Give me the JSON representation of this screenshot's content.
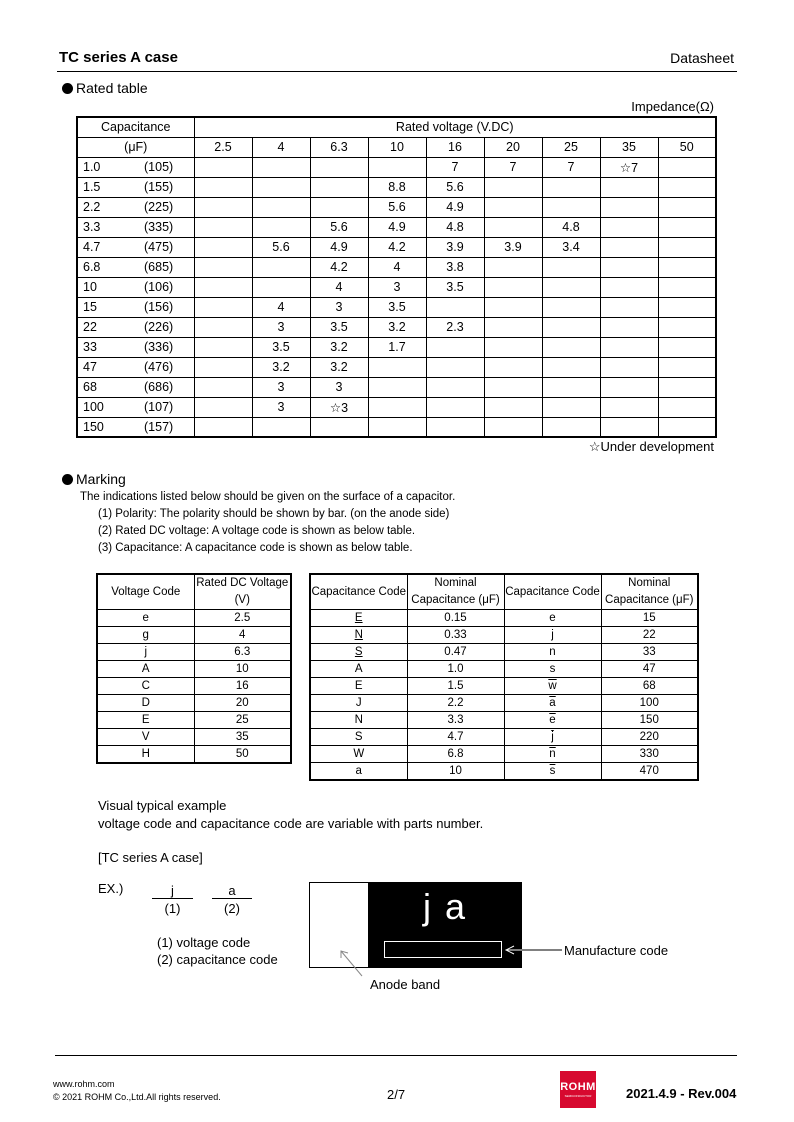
{
  "header": {
    "title": "TC series A case",
    "doc_type": "Datasheet"
  },
  "rated": {
    "section_title": "Rated table",
    "unit_note": "Impedance(Ω)",
    "cap_header": [
      "Capacitance",
      "(μF)"
    ],
    "voltage_header": "Rated voltage (V.DC)",
    "voltages": [
      "2.5",
      "4",
      "6.3",
      "10",
      "16",
      "20",
      "25",
      "35",
      "50"
    ],
    "rows": [
      {
        "cap": "1.0",
        "code": "(105)",
        "values": [
          "",
          "",
          "",
          "",
          "7",
          "7",
          "7",
          "☆7",
          ""
        ]
      },
      {
        "cap": "1.5",
        "code": "(155)",
        "values": [
          "",
          "",
          "",
          "8.8",
          "5.6",
          "",
          "",
          "",
          ""
        ]
      },
      {
        "cap": "2.2",
        "code": "(225)",
        "values": [
          "",
          "",
          "",
          "5.6",
          "4.9",
          "",
          "",
          "",
          ""
        ]
      },
      {
        "cap": "3.3",
        "code": "(335)",
        "values": [
          "",
          "",
          "5.6",
          "4.9",
          "4.8",
          "",
          "4.8",
          "",
          ""
        ]
      },
      {
        "cap": "4.7",
        "code": "(475)",
        "values": [
          "",
          "5.6",
          "4.9",
          "4.2",
          "3.9",
          "3.9",
          "3.4",
          "",
          ""
        ]
      },
      {
        "cap": "6.8",
        "code": "(685)",
        "values": [
          "",
          "",
          "4.2",
          "4",
          "3.8",
          "",
          "",
          "",
          ""
        ]
      },
      {
        "cap": "10",
        "code": "(106)",
        "values": [
          "",
          "",
          "4",
          "3",
          "3.5",
          "",
          "",
          "",
          ""
        ]
      },
      {
        "cap": "15",
        "code": "(156)",
        "values": [
          "",
          "4",
          "3",
          "3.5",
          "",
          "",
          "",
          "",
          ""
        ]
      },
      {
        "cap": "22",
        "code": "(226)",
        "values": [
          "",
          "3",
          "3.5",
          "3.2",
          "2.3",
          "",
          "",
          "",
          ""
        ]
      },
      {
        "cap": "33",
        "code": "(336)",
        "values": [
          "",
          "3.5",
          "3.2",
          "1.7",
          "",
          "",
          "",
          "",
          ""
        ]
      },
      {
        "cap": "47",
        "code": "(476)",
        "values": [
          "",
          "3.2",
          "3.2",
          "",
          "",
          "",
          "",
          "",
          ""
        ]
      },
      {
        "cap": "68",
        "code": "(686)",
        "values": [
          "",
          "3",
          "3",
          "",
          "",
          "",
          "",
          "",
          ""
        ]
      },
      {
        "cap": "100",
        "code": "(107)",
        "values": [
          "",
          "3",
          "☆3",
          "",
          "",
          "",
          "",
          "",
          ""
        ]
      },
      {
        "cap": "150",
        "code": "(157)",
        "values": [
          "",
          "",
          "",
          "",
          "",
          "",
          "",
          "",
          ""
        ]
      }
    ],
    "footnote": "☆Under development"
  },
  "marking": {
    "section_title": "Marking",
    "intro": "The indications listed below should be given on the surface of a capacitor.",
    "items": [
      "(1) Polarity: The polarity should be shown by bar. (on the anode side)",
      "(2) Rated DC voltage: A voltage code is shown as below table.",
      "(3) Capacitance: A capacitance code is shown as below table."
    ],
    "voltage_table": {
      "headers": [
        "Voltage Code",
        "Rated DC Voltage (V)"
      ],
      "rows": [
        [
          "e",
          "2.5"
        ],
        [
          "g",
          "4"
        ],
        [
          "j",
          "6.3"
        ],
        [
          "A",
          "10"
        ],
        [
          "C",
          "16"
        ],
        [
          "D",
          "20"
        ],
        [
          "E",
          "25"
        ],
        [
          "V",
          "35"
        ],
        [
          "H",
          "50"
        ]
      ]
    },
    "cap_table": {
      "headers": [
        "Capacitance Code",
        "Nominal Capacitance (μF)",
        "Capacitance Code",
        "Nominal Capacitance (μF)"
      ],
      "rows": [
        [
          {
            "code": "E",
            "mark": "underline"
          },
          "0.15",
          {
            "code": "e",
            "mark": ""
          },
          "15"
        ],
        [
          {
            "code": "N",
            "mark": "underline"
          },
          "0.33",
          {
            "code": "j",
            "mark": ""
          },
          "22"
        ],
        [
          {
            "code": "S",
            "mark": "underline"
          },
          "0.47",
          {
            "code": "n",
            "mark": ""
          },
          "33"
        ],
        [
          {
            "code": "A",
            "mark": ""
          },
          "1.0",
          {
            "code": "s",
            "mark": ""
          },
          "47"
        ],
        [
          {
            "code": "E",
            "mark": ""
          },
          "1.5",
          {
            "code": "w",
            "mark": "overline"
          },
          "68"
        ],
        [
          {
            "code": "J",
            "mark": ""
          },
          "2.2",
          {
            "code": "a",
            "mark": "overline"
          },
          "100"
        ],
        [
          {
            "code": "N",
            "mark": ""
          },
          "3.3",
          {
            "code": "e",
            "mark": "overline"
          },
          "150"
        ],
        [
          {
            "code": "S",
            "mark": ""
          },
          "4.7",
          {
            "code": "j",
            "mark": "overline"
          },
          "220"
        ],
        [
          {
            "code": "W",
            "mark": ""
          },
          "6.8",
          {
            "code": "n",
            "mark": "overline"
          },
          "330"
        ],
        [
          {
            "code": "a",
            "mark": ""
          },
          "10",
          {
            "code": "s",
            "mark": "overline"
          },
          "470"
        ]
      ]
    },
    "example": {
      "title": "Visual typical example",
      "subtitle": "voltage code and capacitance code are variable with parts number.",
      "case_label": "[TC series A case]",
      "ex_label": "EX.)",
      "code1": "j",
      "code1_num": "(1)",
      "code2": "a",
      "code2_num": "(2)",
      "legend1": "(1) voltage code",
      "legend2": "(2) capacitance code",
      "marking_text": "j a",
      "manufacture_label": "Manufacture code",
      "anode_label": "Anode band"
    }
  },
  "footer": {
    "url": "www.rohm.com",
    "copyright": "© 2021 ROHM Co.,Ltd.All rights reserved.",
    "page": "2/7",
    "logo_text": "ROHM",
    "logo_sub": "SEMICONDUCTOR",
    "logo_color": "#d7092f",
    "revision": "2021.4.9 - Rev.004"
  }
}
